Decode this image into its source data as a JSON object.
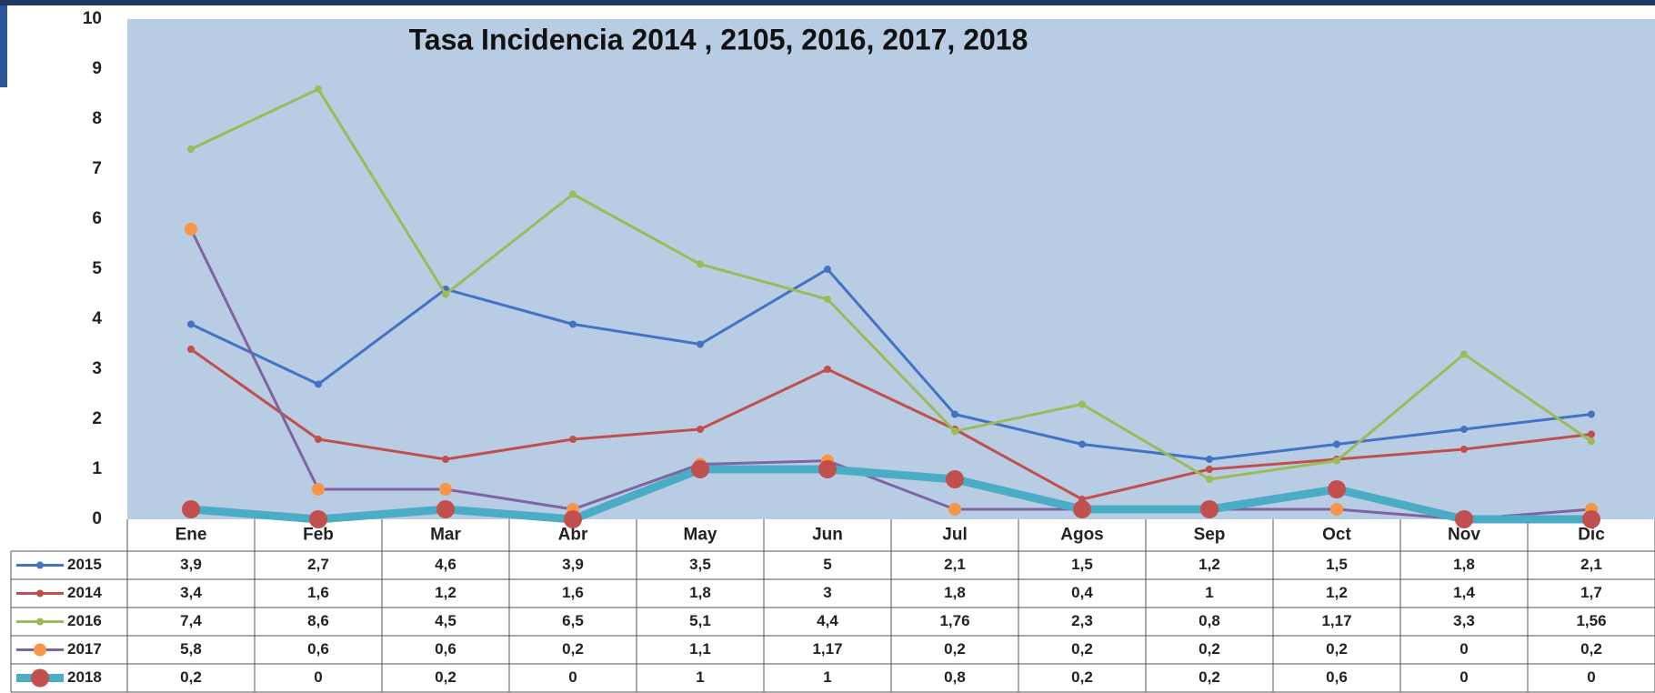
{
  "chart_data": {
    "type": "line",
    "title": "Tasa Incidencia 2014 , 2105,  2016, 2017, 2018",
    "categories": [
      "Ene",
      "Feb",
      "Mar",
      "Abr",
      "May",
      "Jun",
      "Jul",
      "Agos",
      "Sep",
      "Oct",
      "Nov",
      "Dic"
    ],
    "ylim": [
      0,
      10
    ],
    "yticks": [
      0,
      1,
      2,
      3,
      4,
      5,
      6,
      7,
      8,
      9,
      10
    ],
    "series": [
      {
        "name": "2015",
        "color": "#4472c4",
        "marker_color": "#4472c4",
        "values": [
          3.9,
          2.7,
          4.6,
          3.9,
          3.5,
          5,
          2.1,
          1.5,
          1.2,
          1.5,
          1.8,
          2.1
        ],
        "value_labels": [
          "3,9",
          "2,7",
          "4,6",
          "3,9",
          "3,5",
          "5",
          "2,1",
          "1,5",
          "1,2",
          "1,5",
          "1,8",
          "2,1"
        ]
      },
      {
        "name": "2014",
        "color": "#c0504d",
        "marker_color": "#c0504d",
        "values": [
          3.4,
          1.6,
          1.2,
          1.6,
          1.8,
          3,
          1.8,
          0.4,
          1,
          1.2,
          1.4,
          1.7
        ],
        "value_labels": [
          "3,4",
          "1,6",
          "1,2",
          "1,6",
          "1,8",
          "3",
          "1,8",
          "0,4",
          "1",
          "1,2",
          "1,4",
          "1,7"
        ]
      },
      {
        "name": "2016",
        "color": "#9bbb59",
        "marker_color": "#9bbb59",
        "values": [
          7.4,
          8.6,
          4.5,
          6.5,
          5.1,
          4.4,
          1.76,
          2.3,
          0.8,
          1.17,
          3.3,
          1.56
        ],
        "value_labels": [
          "7,4",
          "8,6",
          "4,5",
          "6,5",
          "5,1",
          "4,4",
          "1,76",
          "2,3",
          "0,8",
          "1,17",
          "3,3",
          "1,56"
        ]
      },
      {
        "name": "2017",
        "color": "#8064a2",
        "marker_color": "#f79646",
        "values": [
          5.8,
          0.6,
          0.6,
          0.2,
          1.1,
          1.17,
          0.2,
          0.2,
          0.2,
          0.2,
          0,
          0.2
        ],
        "value_labels": [
          "5,8",
          "0,6",
          "0,6",
          "0,2",
          "1,1",
          "1,17",
          "0,2",
          "0,2",
          "0,2",
          "0,2",
          "0",
          "0,2"
        ]
      },
      {
        "name": "2018",
        "color": "#4bacc6",
        "marker_color": "#c0504d",
        "values": [
          0.2,
          0,
          0.2,
          0,
          1,
          1,
          0.8,
          0.2,
          0.2,
          0.6,
          0,
          0
        ],
        "value_labels": [
          "0,2",
          "0",
          "0,2",
          "0",
          "1",
          "1",
          "0,8",
          "0,2",
          "0,2",
          "0,6",
          "0",
          "0"
        ]
      }
    ]
  }
}
